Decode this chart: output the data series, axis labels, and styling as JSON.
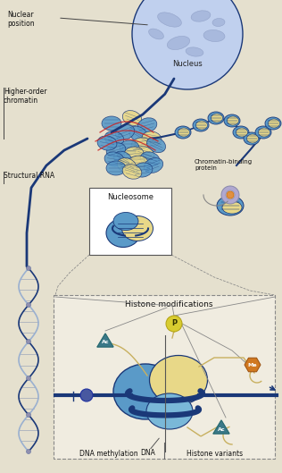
{
  "bg_color": "#e5e0ce",
  "nucleus_color": "#b0c0e0",
  "nucleus_inner_color": "#c0d0ee",
  "nucleus_blob_color": "#9aaecc",
  "dna_color": "#1a3878",
  "nucleosome_blue": "#5a9ac8",
  "nucleosome_yellow": "#e8d888",
  "nucleosome_light_blue": "#7ab8d8",
  "chromatin_binding_orange": "#e09040",
  "chromatin_binding_lavender": "#b0a8d0",
  "label_color": "#111111",
  "annotation_line_color": "#444444",
  "triangle_teal": "#3a7888",
  "me_color": "#d07820",
  "p_color": "#d8cc30",
  "sphere_color": "#4858a0",
  "red_loop_color": "#cc2222",
  "helix_stripe_color": "#9ab0d0",
  "box_line_color": "#777777",
  "tail_color": "#c8b060",
  "labels": {
    "nuclear_position": "Nuclear\nposition",
    "nucleus": "Nucleus",
    "higher_order_chromatin": "Higher-order\nchromatin",
    "structural_rna": "Structural RNA",
    "chromatin_binding": "Chromatin-binding\nprotein",
    "nucleosome": "Nucleosome",
    "histone_modifications": "Histone modifications",
    "dna_methylation": "DNA methylation",
    "histone_variants": "Histone variants",
    "dna": "DNA",
    "p_label": "P",
    "me_label": "Me",
    "ac_label": "Ac"
  }
}
